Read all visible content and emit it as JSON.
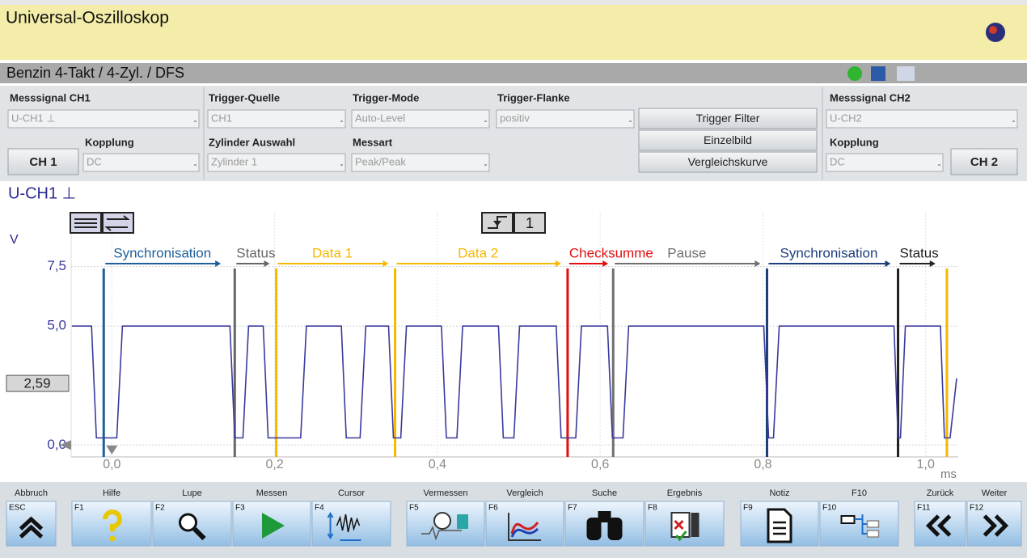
{
  "header": {
    "title": "Universal-Oszilloskop"
  },
  "status_bar": {
    "vehicle": "Benzin 4-Takt /  4-Zyl. / DFS"
  },
  "controls": {
    "ch1": {
      "label": "Messsignal CH1",
      "value": "U-CH1 ⊥",
      "coupling_label": "Kopplung",
      "coupling": "DC",
      "button": "CH 1"
    },
    "trigger_source": {
      "label": "Trigger-Quelle",
      "value": "CH1"
    },
    "trigger_mode": {
      "label": "Trigger-Mode",
      "value": "Auto-Level"
    },
    "trigger_edge": {
      "label": "Trigger-Flanke",
      "value": "positiv"
    },
    "cylinder": {
      "label": "Zylinder Auswahl",
      "value": "Zylinder 1"
    },
    "measure": {
      "label": "Messart",
      "value": "Peak/Peak"
    },
    "buttons": [
      "Trigger Filter",
      "Einzelbild",
      "Vergleichskurve"
    ],
    "ch2": {
      "label": "Messsignal CH2",
      "value": "U-CH2",
      "coupling_label": "Kopplung",
      "coupling": "DC",
      "button": "CH 2"
    }
  },
  "toolbar": {
    "trigger_channel": "1"
  },
  "chart_data": {
    "type": "line",
    "title": "U-CH1 ⊥",
    "y_unit": "V",
    "x_unit": "ms",
    "color": "#3a3a9e",
    "xlim": [
      -0.05,
      1.04
    ],
    "ylim": [
      -0.5,
      9.8
    ],
    "xticks": [
      {
        "value": 0,
        "label": "0,0"
      },
      {
        "value": 0.2,
        "label": "0,2"
      },
      {
        "value": 0.4,
        "label": "0,4"
      },
      {
        "value": 0.6,
        "label": "0,6"
      },
      {
        "value": 0.8,
        "label": "0,8"
      },
      {
        "value": 1.0,
        "label": "1,0"
      }
    ],
    "yticks": [
      {
        "value": 0,
        "label": "0,0"
      },
      {
        "value": 5,
        "label": "5,0"
      },
      {
        "value": 7.5,
        "label": "7,5"
      }
    ],
    "grid": true,
    "cursor": {
      "value": 2.59,
      "label": "2,59"
    },
    "x": [
      -0.049,
      -0.025,
      -0.019,
      0.006,
      0.013,
      0.145,
      0.151,
      0.161,
      0.168,
      0.186,
      0.192,
      0.232,
      0.239,
      0.282,
      0.288,
      0.305,
      0.312,
      0.34,
      0.346,
      0.355,
      0.362,
      0.405,
      0.411,
      0.424,
      0.431,
      0.475,
      0.481,
      0.494,
      0.501,
      0.546,
      0.552,
      0.57,
      0.577,
      0.609,
      0.615,
      0.628,
      0.635,
      0.801,
      0.807,
      0.813,
      0.82,
      0.961,
      0.966,
      0.969,
      0.975,
      1.018,
      1.023,
      1.03,
      1.038
    ],
    "values": [
      5.0,
      5.0,
      0.3,
      0.3,
      5.0,
      5.0,
      0.3,
      0.3,
      5.0,
      5.0,
      0.3,
      0.3,
      5.0,
      5.0,
      0.3,
      0.3,
      5.0,
      5.0,
      0.3,
      0.3,
      5.0,
      5.0,
      0.3,
      0.3,
      5.0,
      5.0,
      0.3,
      0.3,
      5.0,
      5.0,
      0.3,
      0.3,
      5.0,
      5.0,
      0.3,
      0.3,
      5.0,
      5.0,
      0.3,
      0.3,
      5.0,
      5.0,
      0.3,
      0.3,
      5.0,
      5.0,
      0.3,
      0.3,
      2.8
    ],
    "segments": [
      {
        "label": "Synchronisation",
        "color": "#1f5f9a",
        "start": -0.01,
        "end": 0.134
      },
      {
        "label": "Status",
        "color": "#666666",
        "start": 0.151,
        "end": 0.194
      },
      {
        "label": "Data 1",
        "color": "#f5b800",
        "start": 0.202,
        "end": 0.34
      },
      {
        "label": "Data 2",
        "color": "#f5b800",
        "start": 0.348,
        "end": 0.552
      },
      {
        "label": "Checksumme",
        "color": "#e01010",
        "start": 0.56,
        "end": 0.61
      },
      {
        "label": "Pause",
        "color": "#707070",
        "start": 0.616,
        "end": 0.797
      },
      {
        "label": "Synchronisation",
        "color": "#1a3f7a",
        "start": 0.805,
        "end": 0.957
      },
      {
        "label": "Status",
        "color": "#222222",
        "start": 0.966,
        "end": 1.012
      }
    ],
    "trailing_marker": {
      "x": 1.026,
      "color": "#f5b800"
    }
  },
  "function_keys": [
    {
      "key": "ESC",
      "label": "Abbruch"
    },
    {
      "key": "F1",
      "label": "Hilfe"
    },
    {
      "key": "F2",
      "label": "Lupe"
    },
    {
      "key": "F3",
      "label": "Messen"
    },
    {
      "key": "F4",
      "label": "Cursor"
    },
    {
      "key": "F5",
      "label": "Vermessen"
    },
    {
      "key": "F6",
      "label": "Vergleich"
    },
    {
      "key": "F7",
      "label": "Suche"
    },
    {
      "key": "F8",
      "label": "Ergebnis"
    },
    {
      "key": "F9",
      "label": "Notiz"
    },
    {
      "key": "F10",
      "label": "F10"
    },
    {
      "key": "F11",
      "label": "Zurück"
    },
    {
      "key": "F12",
      "label": "Weiter"
    }
  ]
}
